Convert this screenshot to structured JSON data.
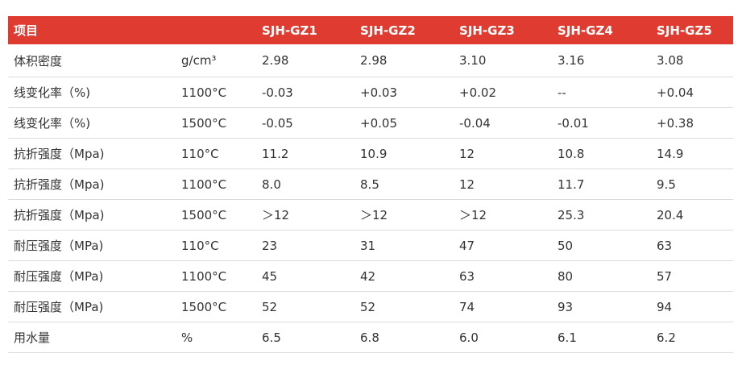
{
  "table": {
    "header": {
      "title": "项目",
      "columns": [
        "SJH-GZ1",
        "SJH-GZ2",
        "SJH-GZ3",
        "SJH-GZ4",
        "SJH-GZ5"
      ]
    },
    "rows": [
      [
        "体积密度",
        "g/cm³",
        "2.98",
        "2.98",
        "3.10",
        "3.16",
        "3.08"
      ],
      [
        "线变化率（%)",
        "1100°C",
        "-0.03",
        "+0.03",
        "+0.02",
        "--",
        "+0.04"
      ],
      [
        "线变化率（%)",
        "1500°C",
        "-0.05",
        "+0.05",
        "-0.04",
        "-0.01",
        "+0.38"
      ],
      [
        "抗折强度（Mpa)",
        "110°C",
        "11.2",
        "10.9",
        "12",
        "10.8",
        "14.9"
      ],
      [
        "抗折强度（Mpa)",
        "1100°C",
        "8.0",
        "8.5",
        "12",
        "11.7",
        "9.5"
      ],
      [
        "抗折强度（Mpa)",
        "1500°C",
        "＞12",
        "＞12",
        "＞12",
        "25.3",
        "20.4"
      ],
      [
        "耐压强度（MPa)",
        "110°C",
        "23",
        "31",
        "47",
        "50",
        "63"
      ],
      [
        "耐压强度（MPa)",
        "1100°C",
        "45",
        "42",
        "63",
        "80",
        "57"
      ],
      [
        "耐压强度（MPa)",
        "1500°C",
        "52",
        "52",
        "74",
        "93",
        "94"
      ],
      [
        "用水量",
        "%",
        "6.5",
        "6.8",
        "6.0",
        "6.1",
        "6.2"
      ]
    ]
  }
}
